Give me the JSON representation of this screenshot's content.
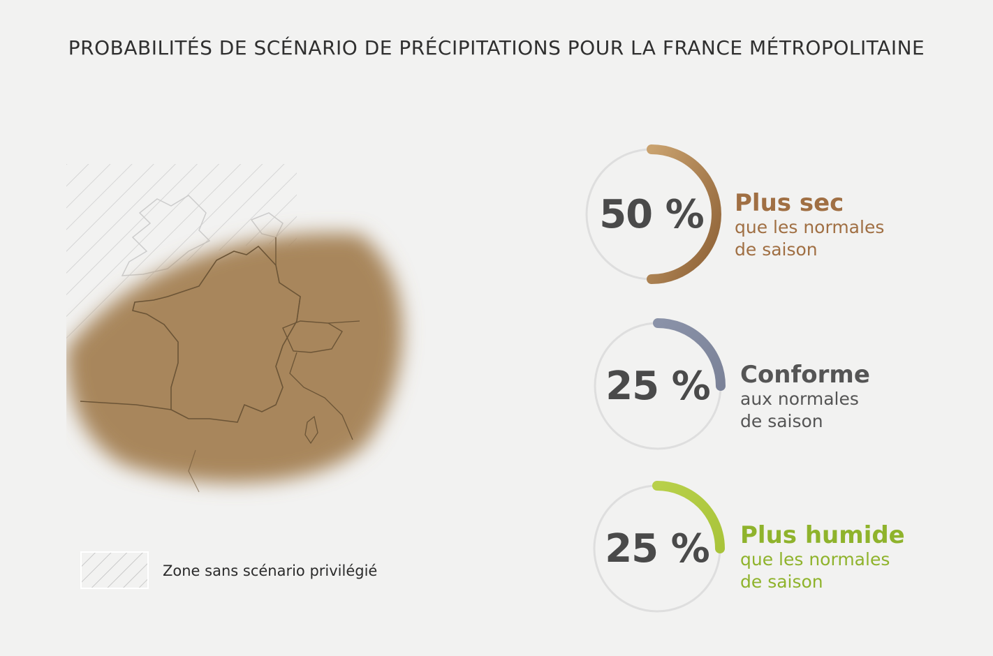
{
  "title": "PROBABILITÉS DE SCÉNARIO DE PRÉCIPITATIONS POUR LA FRANCE MÉTROPOLITAINE",
  "legend": {
    "label": "Zone sans scénario privilégié",
    "hatch_color": "#c9c9c9"
  },
  "map": {
    "fill_color": "#a8865c",
    "border_color": "#6b5436",
    "hatch_color": "#cfcfcf"
  },
  "scenarios": [
    {
      "id": "sec",
      "value": 50,
      "value_label": "50 %",
      "heading": "Plus sec",
      "line1": "que les normales",
      "line2": "de saison",
      "color_start": "#c9a26f",
      "color_end": "#8c5f34",
      "text_color": "#a06f43"
    },
    {
      "id": "conforme",
      "value": 25,
      "value_label": "25 %",
      "heading": "Conforme",
      "line1": "aux normales",
      "line2": "de saison",
      "color_start": "#8a92a8",
      "color_end": "#7b8298",
      "text_color": "#555555"
    },
    {
      "id": "humide",
      "value": 25,
      "value_label": "25 %",
      "heading": "Plus humide",
      "line1": "que les normales",
      "line2": "de saison",
      "color_start": "#b8d04a",
      "color_end": "#a9c43a",
      "text_color": "#8fb32c"
    }
  ]
}
